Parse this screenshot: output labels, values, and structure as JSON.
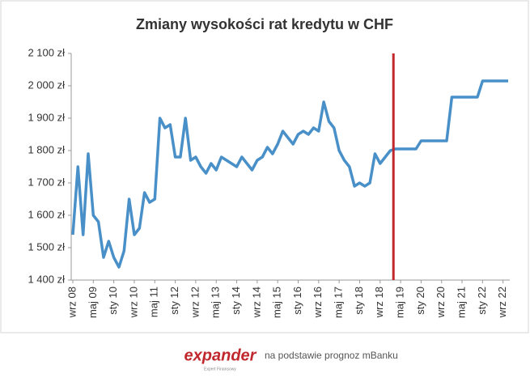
{
  "chart_data": {
    "type": "line",
    "title": "Zmiany wysokości rat kredytu w CHF",
    "categories": [
      "wrz 08",
      null,
      null,
      null,
      "maj 09",
      null,
      null,
      null,
      "sty 10",
      null,
      null,
      null,
      "wrz 10",
      null,
      null,
      null,
      "maj 11",
      null,
      null,
      null,
      "sty 12",
      null,
      null,
      null,
      "wrz 12",
      null,
      null,
      null,
      "maj 13",
      null,
      null,
      null,
      "sty 14",
      null,
      null,
      null,
      "wrz 14",
      null,
      null,
      null,
      "maj 15",
      null,
      null,
      null,
      "sty 16",
      null,
      null,
      null,
      "wrz 16",
      null,
      null,
      null,
      "maj 17",
      null,
      null,
      null,
      "sty 18",
      null,
      null,
      null,
      "wrz 18",
      null,
      null,
      null,
      "maj 19",
      null,
      null,
      null,
      "sty 20",
      null,
      null,
      null,
      "wrz 20",
      null,
      null,
      null,
      "maj 21",
      null,
      null,
      null,
      "sty 22",
      null,
      null,
      null,
      "wrz 22",
      null
    ],
    "values": [
      1540,
      1750,
      1540,
      1790,
      1600,
      1580,
      1470,
      1520,
      1470,
      1440,
      1490,
      1650,
      1540,
      1560,
      1670,
      1640,
      1650,
      1900,
      1870,
      1880,
      1780,
      1780,
      1900,
      1770,
      1780,
      1750,
      1730,
      1760,
      1740,
      1780,
      1770,
      1760,
      1750,
      1780,
      1760,
      1740,
      1770,
      1780,
      1810,
      1790,
      1820,
      1860,
      1840,
      1820,
      1850,
      1860,
      1850,
      1870,
      1860,
      1950,
      1890,
      1870,
      1800,
      1770,
      1750,
      1690,
      1700,
      1690,
      1700,
      1790,
      1760,
      1780,
      1800,
      1805,
      1805,
      1805,
      1805,
      1805,
      1830,
      1830,
      1830,
      1830,
      1830,
      1830,
      1965,
      1965,
      1965,
      1965,
      1965,
      1965,
      2015,
      2015,
      2015,
      2015,
      2015,
      2015
    ],
    "color": "#4a90c8",
    "marker_color": "#c0282d",
    "ylim": [
      1400,
      2100
    ],
    "yticks": [
      {
        "value": 1400,
        "label": "1 400 zł"
      },
      {
        "value": 1500,
        "label": "1 500 zł"
      },
      {
        "value": 1600,
        "label": "1 600 zł"
      },
      {
        "value": 1700,
        "label": "1 700 zł"
      },
      {
        "value": 1800,
        "label": "1 800 zł"
      },
      {
        "value": 1900,
        "label": "1 900 zł"
      },
      {
        "value": 2000,
        "label": "2 000 zł"
      },
      {
        "value": 2100,
        "label": "2 100 zł"
      }
    ],
    "grid": false,
    "logo": "expander",
    "logo_subtitle": "Expert Finansowy",
    "source": "na podstawie prognoz mBanku"
  }
}
